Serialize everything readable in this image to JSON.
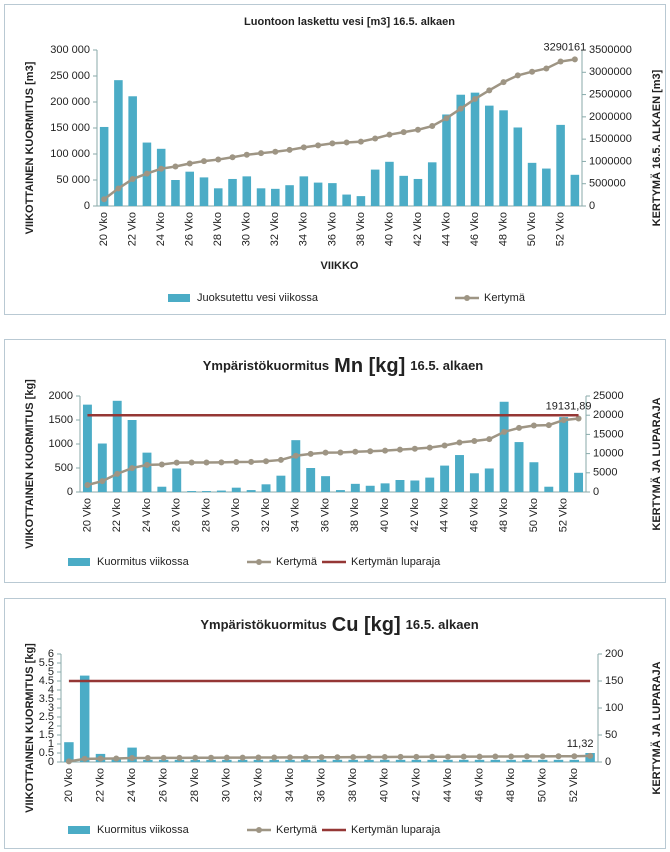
{
  "chart_data": [
    {
      "type": "bar",
      "title": "Luontoon laskettu vesi [m3] 16.5. alkaen",
      "xlabel": "VIIKKO",
      "ylabel": "VIIKOTTAINEN KUORMITUS [m3]",
      "y2label": "KERTYMÄ 16.5. ALKAEN [m3]",
      "categories": [
        "20 Vko",
        null,
        "22 Vko",
        null,
        "24 Vko",
        null,
        "26 Vko",
        null,
        "28 Vko",
        null,
        "30 Vko",
        null,
        "32 Vko",
        null,
        "34 Vko",
        null,
        "36 Vko",
        null,
        "38 Vko",
        null,
        "40 Vko",
        null,
        "42 Vko",
        null,
        "44 Vko",
        null,
        "46 Vko",
        null,
        "48 Vko",
        null,
        "50 Vko",
        null,
        "52 Vko",
        null
      ],
      "ylim": [
        0,
        300000
      ],
      "yticks": [
        0,
        {
          "value": 50000,
          "label": "50 000"
        },
        {
          "value": 100000,
          "label": "100 000"
        },
        {
          "value": 150000,
          "label": "150 000"
        },
        {
          "value": 200000,
          "label": "200 000"
        },
        {
          "value": 250000,
          "label": "250 000"
        },
        {
          "value": 300000,
          "label": "300 000"
        }
      ],
      "y2lim": [
        0,
        3500000
      ],
      "y2ticks": [
        0,
        500000,
        1000000,
        1500000,
        2000000,
        2500000,
        3000000,
        3500000
      ],
      "grid": false,
      "series": [
        {
          "name": "Juoksutettu vesi viikossa",
          "type": "bar",
          "color": "#4bacc6",
          "values": [
            152000,
            242000,
            211000,
            122000,
            110000,
            50000,
            66000,
            55000,
            34000,
            52000,
            57000,
            34000,
            33000,
            40000,
            57000,
            45000,
            44000,
            22000,
            19000,
            70000,
            85000,
            58000,
            52000,
            84000,
            176000,
            214000,
            218000,
            193000,
            184000,
            151000,
            83000,
            72000,
            156000,
            60000
          ]
        },
        {
          "name": "Kertymä",
          "type": "line",
          "axis": "y2",
          "color": "#9e9584",
          "marker": true,
          "data_label": "last",
          "values": [
            152000,
            394000,
            605000,
            727000,
            837000,
            887000,
            953000,
            1008000,
            1042000,
            1094000,
            1151000,
            1185000,
            1218000,
            1258000,
            1315000,
            1360000,
            1404000,
            1426000,
            1445000,
            1515000,
            1600000,
            1658000,
            1710000,
            1794000,
            1970000,
            2184000,
            2402000,
            2595000,
            2779000,
            2930000,
            3013000,
            3085000,
            3241000,
            3290161
          ]
        }
      ]
    },
    {
      "type": "bar",
      "title": [
        "Ympäristökuormitus",
        "Mn [kg]",
        "16.5. alkaen"
      ],
      "ylabel": "VIIKOTTAINEN KUORMITUS [kg]",
      "y2label": "KERTYMÄ JA LUPARAJA",
      "categories": [
        "20 Vko",
        null,
        "22 Vko",
        null,
        "24 Vko",
        null,
        "26 Vko",
        null,
        "28 Vko",
        null,
        "30 Vko",
        null,
        "32 Vko",
        null,
        "34 Vko",
        null,
        "36 Vko",
        null,
        "38 Vko",
        null,
        "40 Vko",
        null,
        "42 Vko",
        null,
        "44 Vko",
        null,
        "46 Vko",
        null,
        "48 Vko",
        null,
        "50 Vko",
        null,
        "52 Vko",
        null
      ],
      "ylim": [
        0,
        2000
      ],
      "yticks": [
        0,
        500,
        1000,
        1500,
        2000
      ],
      "y2lim": [
        0,
        25000
      ],
      "y2ticks": [
        0,
        5000,
        10000,
        15000,
        20000,
        25000
      ],
      "grid": false,
      "series": [
        {
          "name": "Kuormitus viikossa",
          "type": "bar",
          "color": "#4bacc6",
          "values": [
            1820,
            1010,
            1900,
            1500,
            820,
            110,
            490,
            20,
            20,
            30,
            90,
            40,
            160,
            340,
            1080,
            500,
            330,
            40,
            170,
            130,
            180,
            250,
            240,
            300,
            550,
            770,
            390,
            490,
            1880,
            1040,
            620,
            110,
            1560,
            400
          ]
        },
        {
          "name": "Kertymä",
          "type": "line",
          "axis": "y2",
          "color": "#9e9584",
          "marker": true,
          "data_label": "last",
          "values": [
            1820,
            2830,
            4730,
            6230,
            7050,
            7160,
            7650,
            7670,
            7690,
            7720,
            7810,
            7850,
            8010,
            8350,
            9430,
            9930,
            10260,
            10300,
            10470,
            10600,
            10780,
            11030,
            11270,
            11570,
            12120,
            12890,
            13280,
            13770,
            15650,
            16690,
            17310,
            17420,
            18730,
            19131.89
          ],
          "value_labels": [
            null,
            null,
            null,
            null,
            null,
            null,
            null,
            null,
            null,
            null,
            null,
            null,
            null,
            null,
            null,
            null,
            null,
            null,
            null,
            null,
            null,
            null,
            null,
            null,
            null,
            null,
            null,
            null,
            null,
            null,
            null,
            null,
            null,
            "19131,89"
          ]
        },
        {
          "name": "Kertymän luparaja",
          "type": "line",
          "axis": "y2",
          "color": "#953735",
          "marker": false,
          "values": [
            20000,
            20000,
            20000,
            20000,
            20000,
            20000,
            20000,
            20000,
            20000,
            20000,
            20000,
            20000,
            20000,
            20000,
            20000,
            20000,
            20000,
            20000,
            20000,
            20000,
            20000,
            20000,
            20000,
            20000,
            20000,
            20000,
            20000,
            20000,
            20000,
            20000,
            20000,
            20000,
            20000,
            20000
          ]
        }
      ]
    },
    {
      "type": "bar",
      "title": [
        "Ympäristökuormitus",
        "Cu [kg]",
        "16.5. alkaen"
      ],
      "ylabel": "VIIKOTTAINEN KUORMITUS [kg]",
      "y2label": "KERTYMÄ JA LUPARAJA",
      "categories": [
        "20 Vko",
        null,
        "22 Vko",
        null,
        "24 Vko",
        null,
        "26 Vko",
        null,
        "28 Vko",
        null,
        "30 Vko",
        null,
        "32 Vko",
        null,
        "34 Vko",
        null,
        "36 Vko",
        null,
        "38 Vko",
        null,
        "40 Vko",
        null,
        "42 Vko",
        null,
        "44 Vko",
        null,
        "46 Vko",
        null,
        "48 Vko",
        null,
        "50 Vko",
        null,
        "52 Vko",
        null
      ],
      "ylim": [
        0,
        6
      ],
      "yticks": [
        0,
        0.5,
        1,
        1.5,
        2,
        2.5,
        3,
        3.5,
        4,
        4.5,
        5,
        5.5,
        6
      ],
      "y2lim": [
        0,
        200
      ],
      "y2ticks": [
        0,
        50,
        100,
        150,
        200
      ],
      "grid": false,
      "series": [
        {
          "name": "Kuormitus viikossa",
          "type": "bar",
          "color": "#4bacc6",
          "values": [
            1.1,
            4.8,
            0.45,
            0.2,
            0.8,
            0.12,
            0.12,
            0.12,
            0.12,
            0.12,
            0.12,
            0.12,
            0.12,
            0.12,
            0.12,
            0.12,
            0.12,
            0.12,
            0.12,
            0.12,
            0.12,
            0.12,
            0.12,
            0.12,
            0.12,
            0.12,
            0.12,
            0.12,
            0.12,
            0.12,
            0.12,
            0.12,
            0.12,
            0.5
          ]
        },
        {
          "name": "Kertymä",
          "type": "line",
          "axis": "y2",
          "color": "#9e9584",
          "marker": true,
          "data_label": "last",
          "values": [
            1.1,
            5.9,
            6.35,
            6.55,
            7.35,
            7.47,
            7.59,
            7.71,
            7.83,
            7.95,
            8.07,
            8.19,
            8.31,
            8.43,
            8.55,
            8.67,
            8.79,
            8.91,
            9.03,
            9.15,
            9.27,
            9.39,
            9.51,
            9.63,
            9.75,
            9.87,
            9.99,
            10.11,
            10.23,
            10.35,
            10.47,
            10.59,
            10.71,
            11.32
          ],
          "value_labels": [
            null,
            null,
            null,
            null,
            null,
            null,
            null,
            null,
            null,
            null,
            null,
            null,
            null,
            null,
            null,
            null,
            null,
            null,
            null,
            null,
            null,
            null,
            null,
            null,
            null,
            null,
            null,
            null,
            null,
            null,
            null,
            null,
            null,
            "11,32"
          ]
        },
        {
          "name": "Kertymän luparaja",
          "type": "line",
          "axis": "y2",
          "color": "#953735",
          "marker": false,
          "values": [
            150,
            150,
            150,
            150,
            150,
            150,
            150,
            150,
            150,
            150,
            150,
            150,
            150,
            150,
            150,
            150,
            150,
            150,
            150,
            150,
            150,
            150,
            150,
            150,
            150,
            150,
            150,
            150,
            150,
            150,
            150,
            150,
            150,
            150
          ]
        }
      ]
    }
  ]
}
